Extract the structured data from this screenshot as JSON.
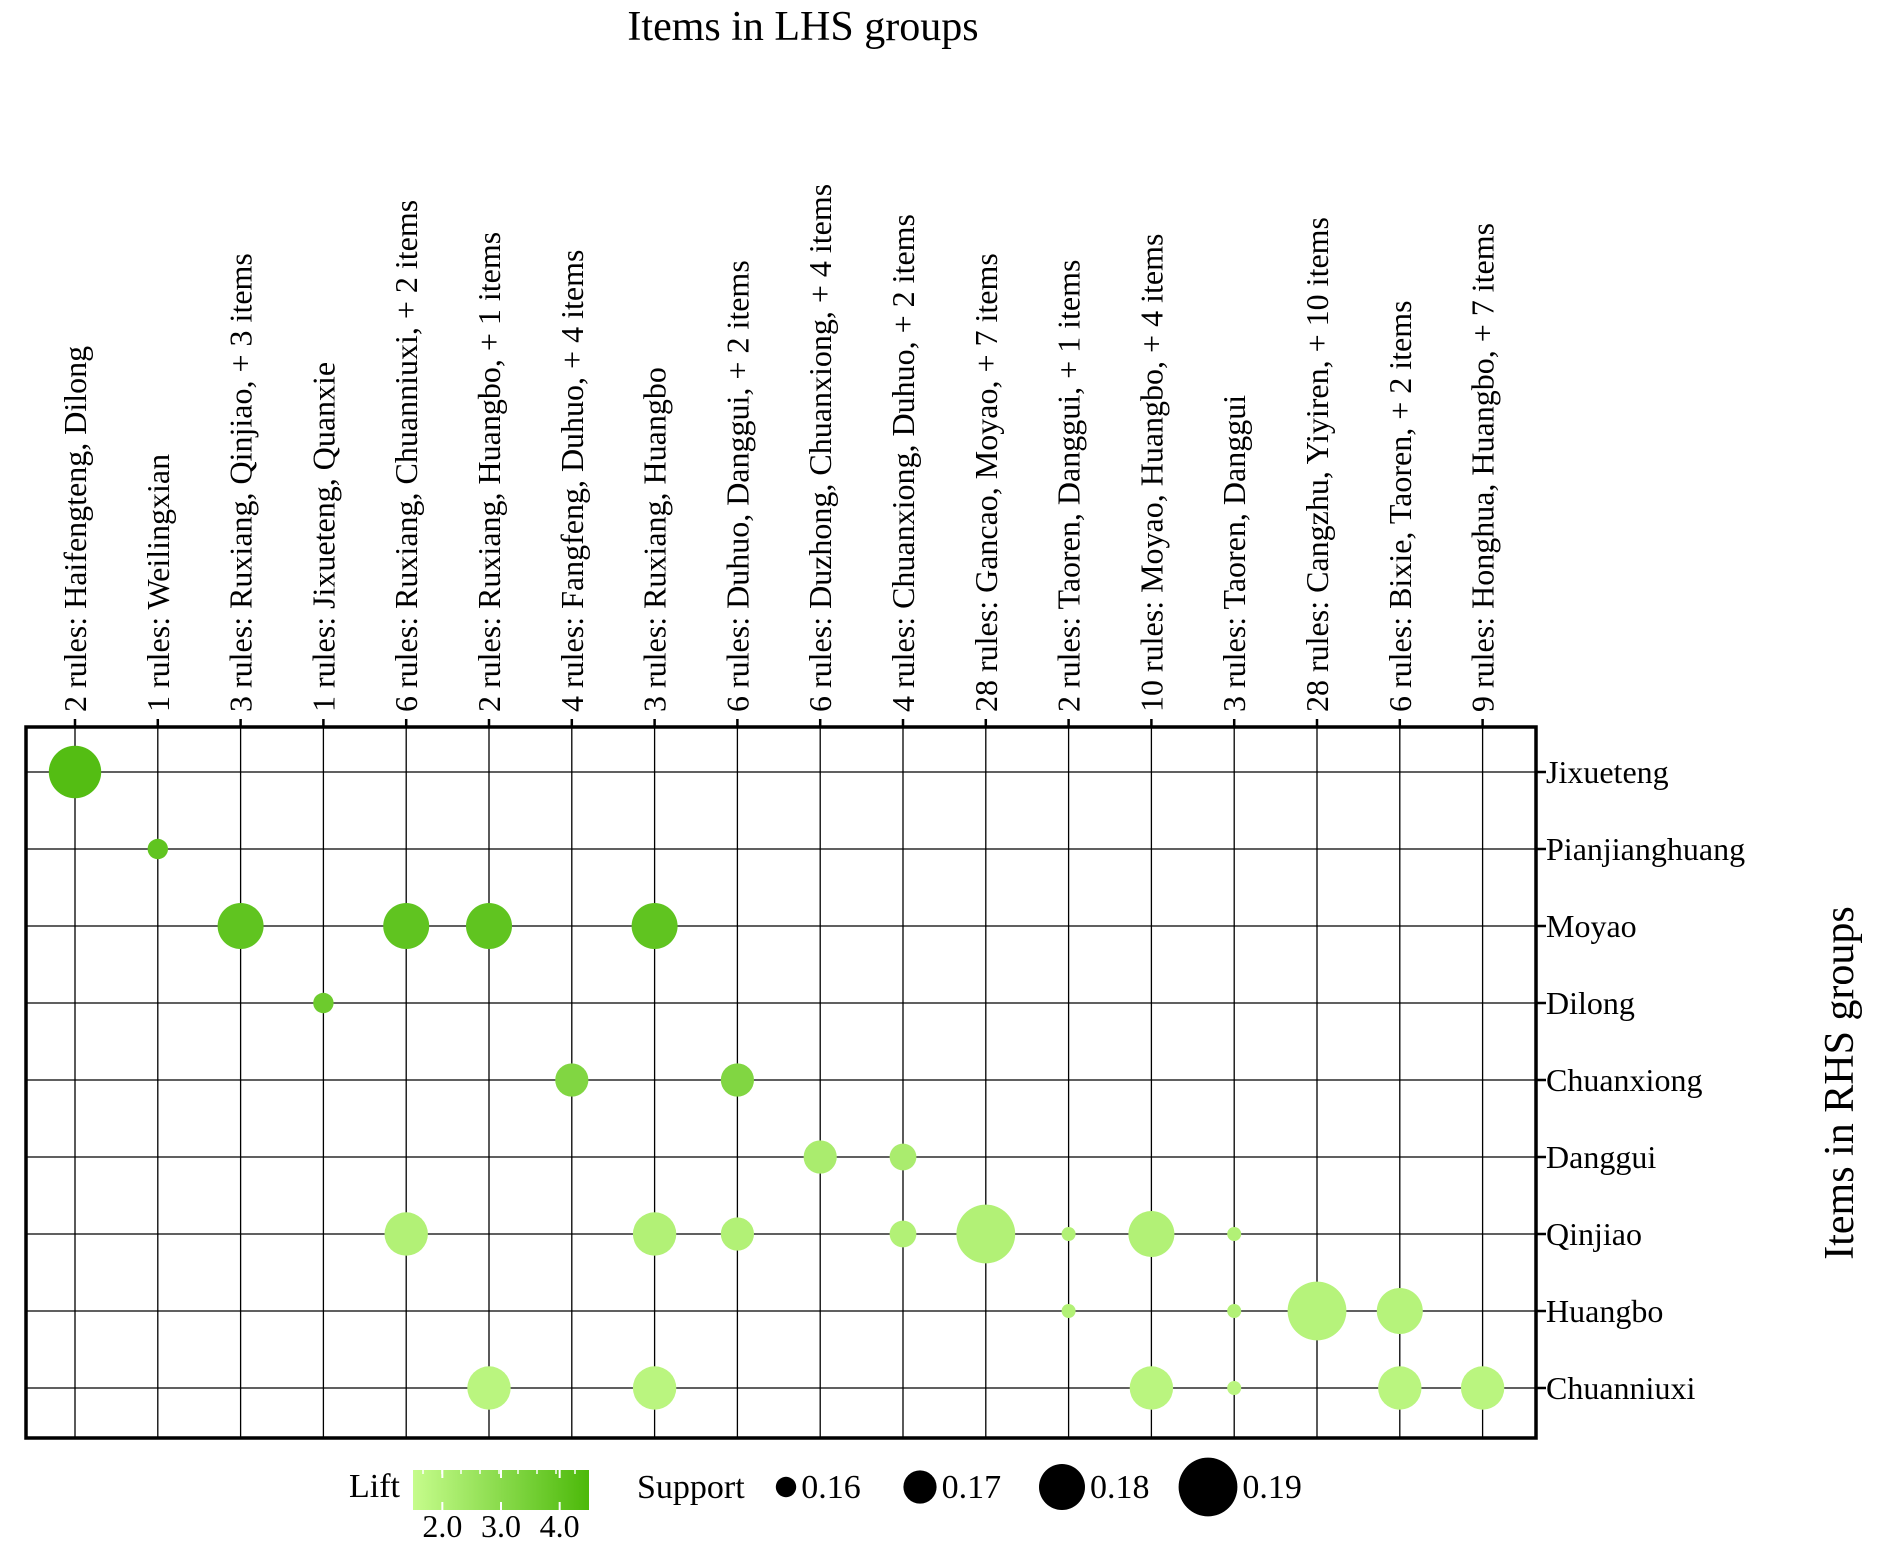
{
  "chart_data": {
    "type": "scatter",
    "title": "Items in LHS groups",
    "ylabel": "Items in RHS groups",
    "lhs_groups": [
      "2 rules: Haifengteng, Dilong",
      "1 rules: Weilingxian",
      "3 rules: Ruxiang, Qinjiao, + 3 items",
      "1 rules: Jixueteng, Quanxie",
      "6 rules: Ruxiang, Chuanniuxi, + 2 items",
      "2 rules: Ruxiang, Huangbo, + 1 items",
      "4 rules: Fangfeng, Duhuo, + 4 items",
      "3 rules: Ruxiang, Huangbo",
      "6 rules: Duhuo, Danggui, + 2 items",
      "6 rules: Duzhong, Chuanxiong, + 4 items",
      "4 rules: Chuanxiong, Duhuo, + 2 items",
      "28 rules: Gancao, Moyao, + 7 items",
      "2 rules: Taoren, Danggui, + 1 items",
      "10 rules: Moyao, Huangbo, + 4 items",
      "3 rules: Taoren, Danggui",
      "28 rules: Cangzhu, Yiyiren, + 10 items",
      "6 rules: Bixie, Taoren, + 2 items",
      "9 rules: Honghua, Huangbo, + 7 items"
    ],
    "rhs_items": [
      "Jixueteng",
      "Pianjianghuang",
      "Moyao",
      "Dilong",
      "Chuanxiong",
      "Danggui",
      "Qinjiao",
      "Huangbo",
      "Chuanniuxi"
    ],
    "points": [
      {
        "lhs": 0,
        "rhs": 0,
        "support": 0.185,
        "lift": 4.3
      },
      {
        "lhs": 1,
        "rhs": 1,
        "support": 0.16,
        "lift": 4.0
      },
      {
        "lhs": 2,
        "rhs": 2,
        "support": 0.18,
        "lift": 4.0
      },
      {
        "lhs": 4,
        "rhs": 2,
        "support": 0.18,
        "lift": 4.0
      },
      {
        "lhs": 5,
        "rhs": 2,
        "support": 0.18,
        "lift": 4.0
      },
      {
        "lhs": 7,
        "rhs": 2,
        "support": 0.18,
        "lift": 4.0
      },
      {
        "lhs": 3,
        "rhs": 3,
        "support": 0.16,
        "lift": 3.7
      },
      {
        "lhs": 6,
        "rhs": 4,
        "support": 0.17,
        "lift": 3.2
      },
      {
        "lhs": 8,
        "rhs": 4,
        "support": 0.17,
        "lift": 3.2
      },
      {
        "lhs": 9,
        "rhs": 5,
        "support": 0.17,
        "lift": 2.2
      },
      {
        "lhs": 10,
        "rhs": 5,
        "support": 0.165,
        "lift": 2.2
      },
      {
        "lhs": 4,
        "rhs": 6,
        "support": 0.178,
        "lift": 2.0
      },
      {
        "lhs": 7,
        "rhs": 6,
        "support": 0.178,
        "lift": 2.0
      },
      {
        "lhs": 8,
        "rhs": 6,
        "support": 0.17,
        "lift": 2.0
      },
      {
        "lhs": 10,
        "rhs": 6,
        "support": 0.165,
        "lift": 2.0
      },
      {
        "lhs": 11,
        "rhs": 6,
        "support": 0.19,
        "lift": 2.0
      },
      {
        "lhs": 12,
        "rhs": 6,
        "support": 0.155,
        "lift": 2.0
      },
      {
        "lhs": 13,
        "rhs": 6,
        "support": 0.18,
        "lift": 2.0
      },
      {
        "lhs": 14,
        "rhs": 6,
        "support": 0.155,
        "lift": 2.0
      },
      {
        "lhs": 12,
        "rhs": 7,
        "support": 0.155,
        "lift": 2.0
      },
      {
        "lhs": 14,
        "rhs": 7,
        "support": 0.155,
        "lift": 2.0
      },
      {
        "lhs": 15,
        "rhs": 7,
        "support": 0.19,
        "lift": 1.9
      },
      {
        "lhs": 16,
        "rhs": 7,
        "support": 0.18,
        "lift": 1.9
      },
      {
        "lhs": 5,
        "rhs": 8,
        "support": 0.178,
        "lift": 1.8
      },
      {
        "lhs": 7,
        "rhs": 8,
        "support": 0.178,
        "lift": 1.8
      },
      {
        "lhs": 13,
        "rhs": 8,
        "support": 0.178,
        "lift": 1.8
      },
      {
        "lhs": 14,
        "rhs": 8,
        "support": 0.155,
        "lift": 1.8
      },
      {
        "lhs": 16,
        "rhs": 8,
        "support": 0.178,
        "lift": 1.8
      },
      {
        "lhs": 17,
        "rhs": 8,
        "support": 0.178,
        "lift": 1.8
      }
    ],
    "legend": {
      "lift_label": "Lift",
      "lift_ticks": [
        "2.0",
        "3.0",
        "4.0"
      ],
      "lift_range": [
        1.5,
        4.5
      ],
      "support_label": "Support",
      "support_values": [
        0.16,
        0.17,
        0.18,
        0.19
      ],
      "support_labels": [
        "0.16",
        "0.17",
        "0.18",
        "0.19"
      ],
      "placement": "bottom"
    },
    "colors": {
      "low": "#c6fc8c",
      "high": "#4cb90a"
    },
    "grid": true
  }
}
